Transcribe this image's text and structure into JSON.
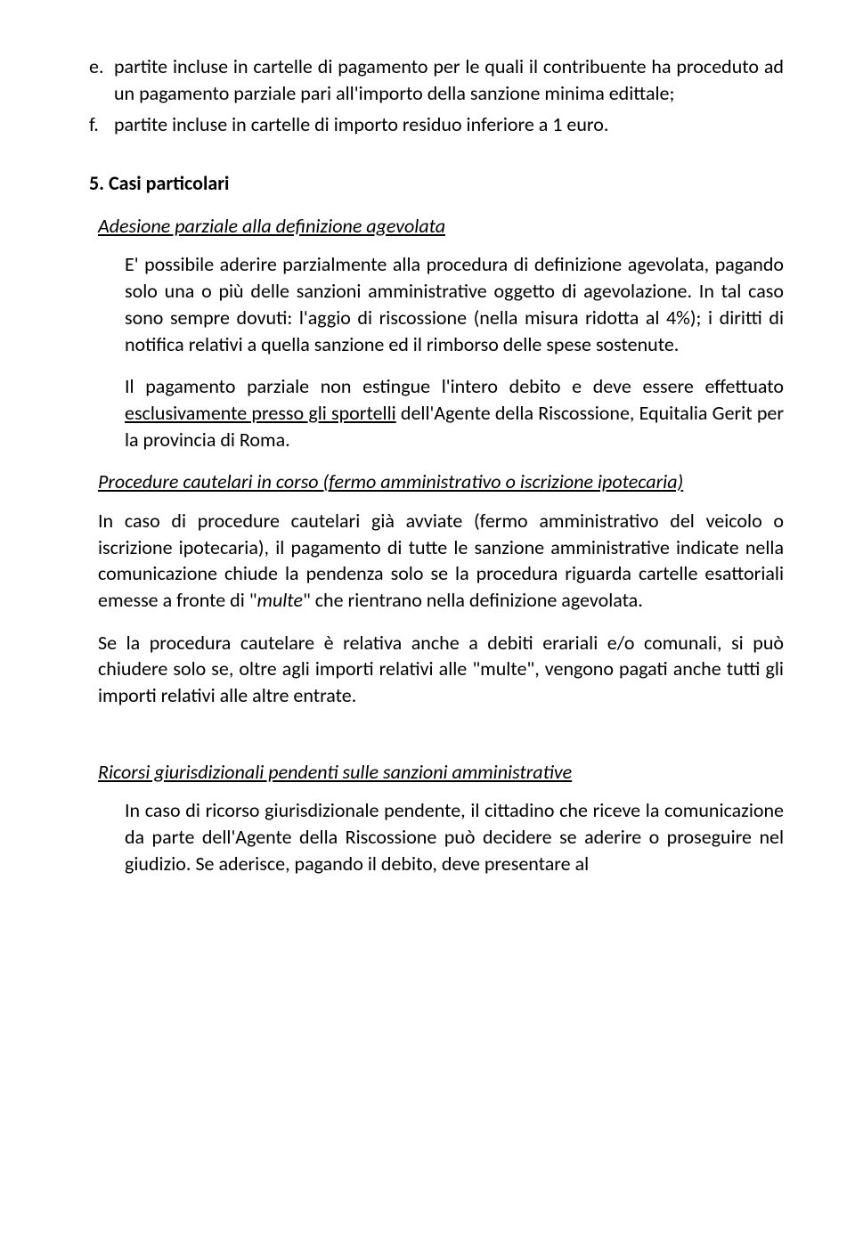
{
  "list": [
    {
      "marker": "e.",
      "text": "partite incluse in cartelle di pagamento per le quali il contribuente ha proceduto ad un pagamento parziale pari all'importo della sanzione minima edittale;"
    },
    {
      "marker": "f.",
      "text": "partite incluse in cartelle di importo residuo inferiore a 1 euro."
    }
  ],
  "section5": {
    "heading": "Casi particolari",
    "num": "5.",
    "sub1": {
      "title": "Adesione parziale alla definizione agevolata",
      "p1": "E' possibile aderire parzialmente alla procedura di definizione agevolata, pagando solo una o più delle sanzioni amministrative oggetto di agevolazione. In tal caso sono sempre dovuti: l'aggio di riscossione (nella misura ridotta al 4%); i diritti di notifica relativi a quella sanzione ed il rimborso delle spese sostenute.",
      "p2a": "Il pagamento parziale non estingue l'intero debito e deve essere effettuato ",
      "p2u": "esclusivamente presso gli sportelli",
      "p2b": " dell'Agente della Riscossione, Equitalia Gerit per la provincia di Roma."
    },
    "sub2": {
      "title": "Procedure cautelari in corso (fermo amministrativo o iscrizione ipotecaria)",
      "p1a": "In caso di procedure cautelari già avviate (fermo amministrativo del veicolo o iscrizione ipotecaria), il pagamento di tutte le sanzione amministrative indicate nella comunicazione chiude la pendenza solo se la procedura riguarda cartelle esattoriali emesse a fronte di \"",
      "p1i": "multe",
      "p1b": "\" che rientrano nella definizione agevolata.",
      "p2": "Se la procedura cautelare è relativa anche a debiti erariali e/o comunali, si può chiudere  solo se, oltre agli importi relativi alle \"multe\", vengono pagati anche tutti gli importi relativi alle altre entrate."
    },
    "sub3": {
      "title": "Ricorsi giurisdizionali pendenti sulle sanzioni amministrative",
      "p1": "In caso di ricorso giurisdizionale pendente, il cittadino che riceve la comunicazione da parte dell'Agente della Riscossione può decidere se aderire o proseguire nel giudizio. Se aderisce, pagando il debito, deve presentare al"
    }
  }
}
